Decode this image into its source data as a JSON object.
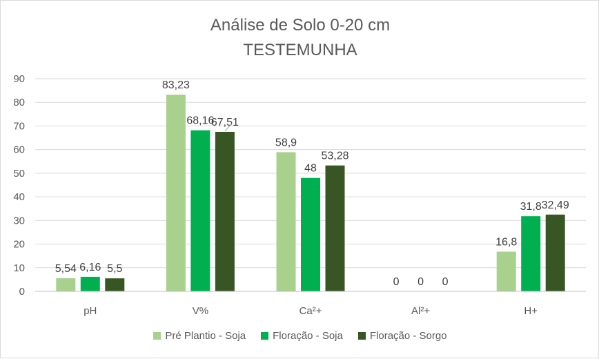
{
  "chart_data": {
    "type": "bar",
    "title": "Análise de Solo 0-20 cm",
    "subtitle": "TESTEMUNHA",
    "categories": [
      "pH",
      "V%",
      "Ca²+",
      "Al²+",
      "H+"
    ],
    "series": [
      {
        "name": "Pré Plantio - Soja",
        "color": "#a9d18e",
        "values": [
          5.54,
          83.23,
          58.9,
          0,
          16.8
        ],
        "labels": [
          "5,54",
          "83,23",
          "58,9",
          "0",
          "16,8"
        ]
      },
      {
        "name": "Floração - Soja",
        "color": "#00b050",
        "values": [
          6.16,
          68.16,
          48,
          0,
          31.8
        ],
        "labels": [
          "6,16",
          "68,16",
          "48",
          "0",
          "31,8"
        ]
      },
      {
        "name": "Floração - Sorgo",
        "color": "#375623",
        "values": [
          5.5,
          67.51,
          53.28,
          0,
          32.49
        ],
        "labels": [
          "5,5",
          "67,51",
          "53,28",
          "0",
          "32,49"
        ]
      }
    ],
    "ylim": [
      0,
      90
    ],
    "yticks": [
      0,
      10,
      20,
      30,
      40,
      50,
      60,
      70,
      80,
      90
    ],
    "grid": true,
    "legend_position": "bottom"
  }
}
